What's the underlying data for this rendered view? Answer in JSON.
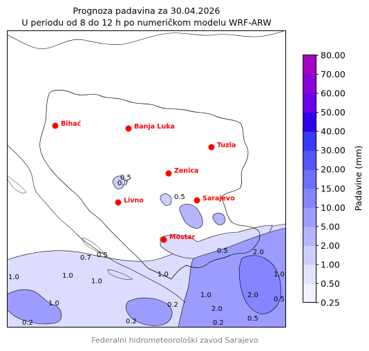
{
  "title": "Prognoza padavina za 30.04.2026",
  "subtitle": "U periodu od 8 do 12 h po numeričkom modelu WRF-ARW",
  "footer": "Federalni hidrometeorološki zavod Sarajevo",
  "colorbar": {
    "label": "Padavine (mm)",
    "levels": [
      "0.25",
      "0.50",
      "1.00",
      "2.00",
      "5.00",
      "10.00",
      "15.00",
      "20.00",
      "30.00",
      "40.00",
      "50.00",
      "60.00",
      "70.00",
      "80.00"
    ],
    "colors": [
      "#f1f1ff",
      "#e3e3ff",
      "#cdcdff",
      "#b4b4ff",
      "#9c9cff",
      "#8585ff",
      "#6e6eff",
      "#5555ff",
      "#3838ff",
      "#2f00ee",
      "#6a00ee",
      "#8a00dd",
      "#a600c4"
    ]
  },
  "cities": [
    {
      "name": "Bihać"
    },
    {
      "name": "Banja Luka"
    },
    {
      "name": "Tuzla"
    },
    {
      "name": "Zenica"
    },
    {
      "name": "Livno"
    },
    {
      "name": "Sarajevo"
    },
    {
      "name": "Mostar"
    }
  ],
  "contour_labels": [
    "0.2",
    "0.5",
    "0.7",
    "1.0",
    "1.0",
    "1.0",
    "1.0",
    "0.7",
    "0.5",
    "0.5",
    "0.2",
    "0.2",
    "2.0",
    "2.0",
    "1.0",
    "0.5",
    "0.5",
    "0.2",
    "1.0",
    "1.0",
    "2.0",
    "0.5"
  ],
  "colors": {
    "city": "#ff0000",
    "light": "#dcdcff",
    "medium": "#9c9cff",
    "dark": "#8585ff"
  }
}
